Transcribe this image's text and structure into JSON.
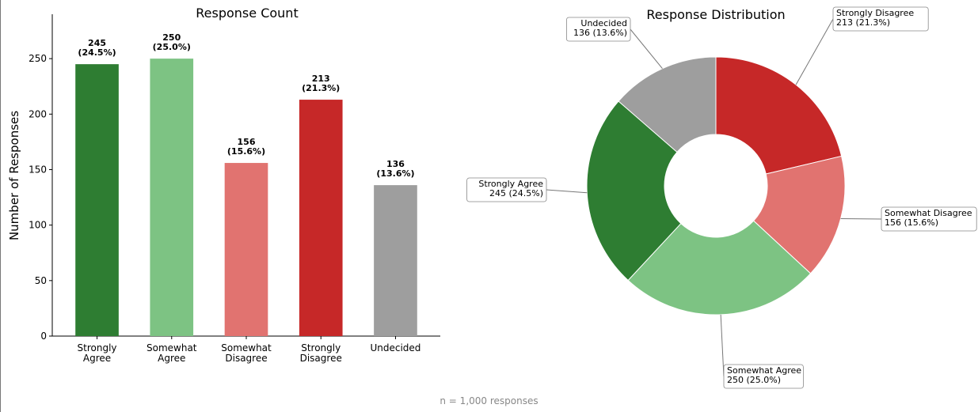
{
  "chart_data": [
    {
      "type": "bar",
      "title": "Response Count",
      "xlabel": "",
      "ylabel": "Number of Responses",
      "ylim": [
        0,
        290
      ],
      "yticks": [
        0,
        50,
        100,
        150,
        200,
        250
      ],
      "grid": false,
      "categories": [
        "Strongly Agree",
        "Somewhat Agree",
        "Somewhat Disagree",
        "Strongly Disagree",
        "Undecided"
      ],
      "category_tick_labels": [
        [
          "Strongly",
          "Agree"
        ],
        [
          "Somewhat",
          "Agree"
        ],
        [
          "Somewhat",
          "Disagree"
        ],
        [
          "Strongly",
          "Disagree"
        ],
        [
          "Undecided"
        ]
      ],
      "values": [
        245,
        250,
        156,
        213,
        136
      ],
      "data_labels": [
        [
          "245",
          "(24.5%)"
        ],
        [
          "250",
          "(25.0%)"
        ],
        [
          "156",
          "(15.6%)"
        ],
        [
          "213",
          "(21.3%)"
        ],
        [
          "136",
          "(13.6%)"
        ]
      ],
      "colors": [
        "#2e7d32",
        "#7dc383",
        "#e17370",
        "#c62828",
        "#9e9e9e"
      ]
    },
    {
      "type": "pie",
      "donut": true,
      "title": "Response Distribution",
      "slices": [
        {
          "label": "Strongly Disagree",
          "value": 213,
          "text": "213 (21.3%)",
          "color": "#c62828"
        },
        {
          "label": "Somewhat Disagree",
          "value": 156,
          "text": "156 (15.6%)",
          "color": "#e17370"
        },
        {
          "label": "Somewhat Agree",
          "value": 250,
          "text": "250 (25.0%)",
          "color": "#7dc383"
        },
        {
          "label": "Strongly Agree",
          "value": 245,
          "text": "245 (24.5%)",
          "color": "#2e7d32"
        },
        {
          "label": "Undecided",
          "value": 136,
          "text": "136 (13.6%)",
          "color": "#9e9e9e"
        }
      ]
    }
  ],
  "footnote": "n = 1,000 responses"
}
